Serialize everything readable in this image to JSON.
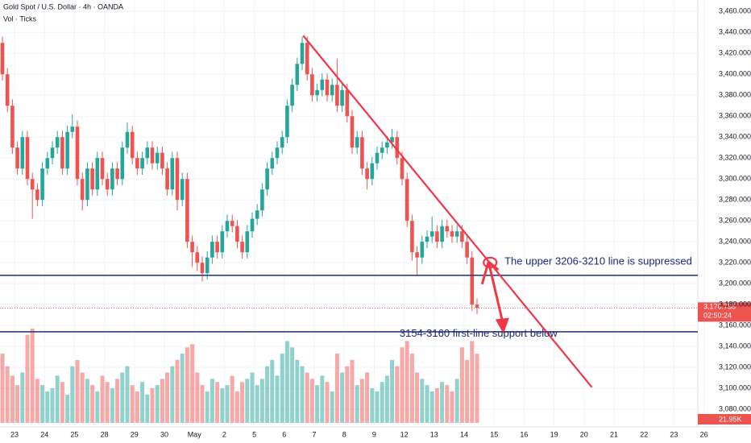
{
  "chart_data": {
    "type": "candlestick",
    "title": "Gold Spot / U.S. Dollar · 4h · OANDA",
    "volume_title": "Vol · Ticks",
    "up_color": "#26a69a",
    "down_color": "#ef5350",
    "ylim": [
      3067,
      3471
    ],
    "yticks": [
      {
        "value": 3080,
        "label": "3,080.000"
      },
      {
        "value": 3100,
        "label": "3,100.000"
      },
      {
        "value": 3120,
        "label": "3,120.000"
      },
      {
        "value": 3140,
        "label": "3,140.000"
      },
      {
        "value": 3160,
        "label": "3,160.000"
      },
      {
        "value": 3180,
        "label": "3,180.000"
      },
      {
        "value": 3200,
        "label": "3,200.000"
      },
      {
        "value": 3220,
        "label": "3,220.000"
      },
      {
        "value": 3240,
        "label": "3,240.000"
      },
      {
        "value": 3260,
        "label": "3,260.000"
      },
      {
        "value": 3280,
        "label": "3,280.000"
      },
      {
        "value": 3300,
        "label": "3,300.000"
      },
      {
        "value": 3320,
        "label": "3,320.000"
      },
      {
        "value": 3340,
        "label": "3,340.000"
      },
      {
        "value": 3360,
        "label": "3,360.000"
      },
      {
        "value": 3380,
        "label": "3,380.000"
      },
      {
        "value": 3400,
        "label": "3,400.000"
      },
      {
        "value": 3420,
        "label": "3,420.000"
      },
      {
        "value": 3440,
        "label": "3,440.000"
      },
      {
        "value": 3460,
        "label": "3,460.000"
      }
    ],
    "days": [
      "23",
      "24",
      "25",
      "28",
      "29",
      "30",
      "May",
      "2",
      "5",
      "6",
      "7",
      "8",
      "9",
      "12",
      "13",
      "14",
      "15",
      "16",
      "19",
      "20",
      "21",
      "22",
      "23",
      "26"
    ],
    "open": [
      3430,
      3400,
      3370,
      3330,
      3310,
      3340,
      3300,
      3290,
      3280,
      3310,
      3320,
      3330,
      3340,
      3310,
      3345,
      3350,
      3300,
      3280,
      3310,
      3290,
      3320,
      3300,
      3290,
      3310,
      3300,
      3330,
      3345,
      3320,
      3310,
      3320,
      3330,
      3315,
      3325,
      3310,
      3290,
      3320,
      3280,
      3300,
      3240,
      3230,
      3220,
      3210,
      3225,
      3240,
      3230,
      3250,
      3260,
      3255,
      3240,
      3230,
      3250,
      3262,
      3270,
      3290,
      3310,
      3320,
      3330,
      3340,
      3370,
      3390,
      3410,
      3430,
      3400,
      3380,
      3385,
      3395,
      3380,
      3390,
      3370,
      3385,
      3360,
      3330,
      3340,
      3310,
      3300,
      3315,
      3325,
      3330,
      3335,
      3340,
      3320,
      3300,
      3260,
      3230,
      3225,
      3240,
      3245,
      3250,
      3240,
      3255,
      3250,
      3245,
      3250,
      3240,
      3225,
      3180
    ],
    "high": [
      3436,
      3406,
      3376,
      3336,
      3346,
      3346,
      3306,
      3296,
      3316,
      3326,
      3336,
      3346,
      3346,
      3351,
      3362,
      3356,
      3306,
      3316,
      3316,
      3326,
      3326,
      3306,
      3316,
      3316,
      3336,
      3354,
      3351,
      3326,
      3326,
      3336,
      3336,
      3331,
      3331,
      3316,
      3326,
      3326,
      3306,
      3306,
      3246,
      3236,
      3226,
      3231,
      3246,
      3246,
      3256,
      3266,
      3266,
      3261,
      3246,
      3256,
      3268,
      3276,
      3296,
      3316,
      3326,
      3336,
      3346,
      3376,
      3396,
      3416,
      3436,
      3436,
      3406,
      3391,
      3401,
      3401,
      3396,
      3415,
      3391,
      3391,
      3366,
      3346,
      3346,
      3316,
      3321,
      3331,
      3336,
      3341,
      3348,
      3346,
      3326,
      3306,
      3266,
      3236,
      3246,
      3251,
      3264,
      3256,
      3261,
      3261,
      3256,
      3256,
      3256,
      3246,
      3231,
      3186
    ],
    "low": [
      3394,
      3364,
      3324,
      3304,
      3304,
      3294,
      3262,
      3274,
      3274,
      3304,
      3314,
      3324,
      3304,
      3304,
      3339,
      3294,
      3270,
      3274,
      3284,
      3284,
      3294,
      3284,
      3284,
      3294,
      3294,
      3324,
      3314,
      3304,
      3304,
      3314,
      3309,
      3309,
      3304,
      3284,
      3284,
      3270,
      3274,
      3234,
      3216,
      3212,
      3202,
      3204,
      3219,
      3224,
      3224,
      3244,
      3249,
      3234,
      3224,
      3224,
      3244,
      3256,
      3264,
      3284,
      3304,
      3314,
      3324,
      3334,
      3364,
      3384,
      3404,
      3394,
      3374,
      3374,
      3379,
      3374,
      3374,
      3364,
      3364,
      3354,
      3324,
      3324,
      3304,
      3290,
      3294,
      3309,
      3319,
      3324,
      3329,
      3314,
      3294,
      3254,
      3222,
      3208,
      3219,
      3234,
      3239,
      3234,
      3234,
      3244,
      3239,
      3239,
      3234,
      3219,
      3174,
      3171
    ],
    "close": [
      3400,
      3370,
      3330,
      3310,
      3340,
      3300,
      3290,
      3280,
      3310,
      3320,
      3330,
      3340,
      3310,
      3345,
      3350,
      3300,
      3280,
      3310,
      3290,
      3320,
      3300,
      3290,
      3310,
      3300,
      3330,
      3345,
      3320,
      3310,
      3320,
      3330,
      3315,
      3325,
      3310,
      3290,
      3320,
      3280,
      3300,
      3240,
      3230,
      3220,
      3210,
      3225,
      3240,
      3230,
      3250,
      3260,
      3255,
      3240,
      3230,
      3250,
      3262,
      3270,
      3290,
      3310,
      3320,
      3330,
      3340,
      3370,
      3390,
      3410,
      3430,
      3400,
      3380,
      3385,
      3395,
      3380,
      3390,
      3370,
      3385,
      3360,
      3330,
      3340,
      3310,
      3300,
      3315,
      3325,
      3330,
      3335,
      3340,
      3320,
      3300,
      3260,
      3230,
      3225,
      3240,
      3245,
      3250,
      3240,
      3255,
      3250,
      3245,
      3250,
      3240,
      3225,
      3180,
      3177
    ],
    "volume": [
      22,
      18,
      15,
      12,
      16,
      28,
      30,
      14,
      12,
      10,
      11,
      15,
      13,
      9,
      18,
      20,
      16,
      14,
      12,
      10,
      15,
      13,
      11,
      14,
      16,
      18,
      12,
      10,
      13,
      9,
      11,
      12,
      14,
      16,
      18,
      20,
      22,
      24,
      25,
      16,
      12,
      10,
      14,
      13,
      11,
      12,
      15,
      10,
      13,
      14,
      16,
      12,
      14,
      18,
      20,
      15,
      22,
      26,
      24,
      20,
      18,
      16,
      14,
      12,
      15,
      13,
      10,
      22,
      16,
      18,
      20,
      12,
      14,
      16,
      11,
      10,
      13,
      15,
      20,
      18,
      24,
      26,
      22,
      16,
      14,
      12,
      10,
      11,
      13,
      12,
      10,
      14,
      24,
      20,
      26,
      21.95
    ],
    "volume_lim": [
      0,
      32
    ],
    "last_volume_label": "21.95K",
    "last_price": {
      "value": 3176.755,
      "label": "3,176.755"
    },
    "countdown": "02:50:24",
    "levels": [
      3208,
      3154
    ],
    "trendline": {
      "start": [
        60.2,
        3437
      ],
      "end": [
        118,
        3101
      ]
    },
    "arrow": {
      "start": [
        97.3,
        3221
      ],
      "end": [
        100.3,
        3152
      ]
    },
    "annotations": [
      {
        "text": "The upper 3206-3210 line is suppressed",
        "at": [
          100.5,
          3221
        ]
      },
      {
        "text": "3154-3160 first-line support below",
        "at": [
          79.5,
          3152
        ]
      }
    ]
  }
}
